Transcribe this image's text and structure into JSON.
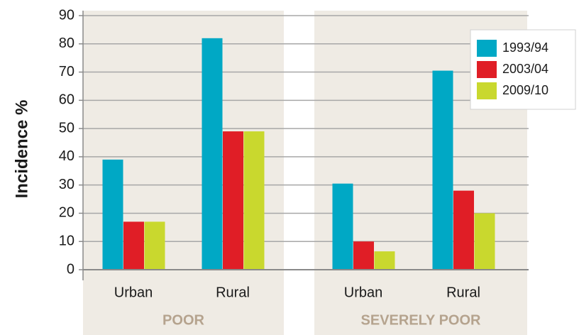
{
  "chart_data": {
    "type": "bar",
    "ylabel": "Incidence %",
    "categories": [
      "Urban",
      "Rural",
      "Urban",
      "Rural"
    ],
    "groups": [
      "POOR",
      "SEVERELY POOR"
    ],
    "series": [
      {
        "name": "1993/94",
        "color": "#00a8c5",
        "values": [
          39,
          82,
          30.5,
          70.5
        ]
      },
      {
        "name": "2003/04",
        "color": "#e01e26",
        "values": [
          17,
          49,
          10,
          28
        ]
      },
      {
        "name": "2009/10",
        "color": "#c9d82e",
        "values": [
          17,
          49,
          6.5,
          20
        ]
      }
    ],
    "ylim": [
      0,
      90
    ],
    "yticks": [
      0,
      10,
      20,
      30,
      40,
      50,
      60,
      70,
      80,
      90
    ],
    "grid": true,
    "legend": "top-right"
  }
}
